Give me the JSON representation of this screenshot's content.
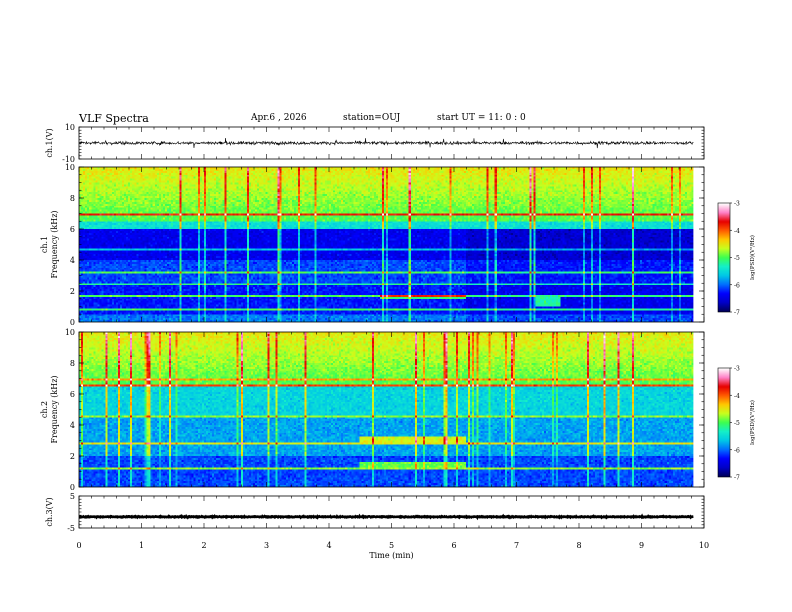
{
  "header": {
    "title": "VLF Spectra",
    "date": "Apr.6 , 2026",
    "station": "station=OUJ",
    "start_ut": "start UT = 11: 0 : 0"
  },
  "colors": {
    "spectrogram_colormap": [
      "#00007a",
      "#0000ff",
      "#0080ff",
      "#00e0e0",
      "#20ff60",
      "#e0ff20",
      "#ff8000",
      "#ff0000",
      "#ff80c0",
      "#ffffff"
    ],
    "waveform": "#000000"
  },
  "chart_data": [
    {
      "type": "line",
      "ylabel": "ch.1(V)",
      "ylim": [
        -10,
        10
      ],
      "ytick_labels": [
        "10",
        "-10"
      ],
      "xlim": [
        0,
        10
      ],
      "series": [
        {
          "values_note": "noise waveform centred on 0 V, roughly ±1 V with occasional spikes",
          "center": 0,
          "amplitude": 1
        }
      ]
    },
    {
      "type": "heatmap",
      "ylabel": "ch.1\nFrequency (kHz)",
      "ylim": [
        0,
        10
      ],
      "ytick_labels": [
        "0",
        "2",
        "4",
        "6",
        "8",
        "10"
      ],
      "xlim": [
        0,
        9.83
      ],
      "colorbar": {
        "label": "log(PSD)(V²/Hz)",
        "range": [
          -7,
          -3
        ],
        "tick_labels": [
          "-3",
          "-4",
          "-5",
          "-6",
          "-7"
        ]
      },
      "features": {
        "quiet_bands_khz": [
          [
            4.0,
            6.0
          ],
          [
            0.5,
            2.5
          ]
        ],
        "active_band_khz": [
          6.5,
          10
        ],
        "horizontal_lines_khz": [
          0.8,
          1.6,
          2.4,
          3.2,
          4.7,
          7.0
        ],
        "emission_bursts": [
          {
            "t_min": [
              4.8,
              6.2
            ],
            "f_khz": 1.6
          },
          {
            "t_min": [
              7.3,
              7.7
            ],
            "f_khz": [
              1.0,
              1.6
            ]
          }
        ]
      }
    },
    {
      "type": "heatmap",
      "ylabel": "ch.2\nFrequency (kHz)",
      "ylim": [
        0,
        10
      ],
      "ytick_labels": [
        "0",
        "2",
        "4",
        "6",
        "8",
        "10"
      ],
      "xlim": [
        0,
        9.83
      ],
      "colorbar": {
        "label": "log(PSD)(V²/Hz)",
        "range": [
          -7,
          -3
        ],
        "tick_labels": [
          "-3",
          "-4",
          "-5",
          "-6",
          "-7"
        ]
      },
      "features": {
        "active_band_khz": [
          6.5,
          10
        ],
        "horizontal_lines_khz": [
          1.2,
          2.8,
          4.5,
          6.6,
          7.0
        ],
        "emission_bursts": [
          {
            "t_min": [
              4.5,
              6.2
            ],
            "f_khz": [
              2.8,
              3.2
            ]
          },
          {
            "t_min": [
              4.5,
              6.2
            ],
            "f_khz": 1.4
          }
        ]
      }
    },
    {
      "type": "line",
      "ylabel": "ch.3(V)",
      "ylim": [
        -5,
        5
      ],
      "ytick_labels": [
        "5",
        "-5"
      ],
      "xlim": [
        0,
        10
      ],
      "series": [
        {
          "values_note": "flat trace at about -1.5 V",
          "center": -1.5,
          "amplitude": 0.15
        }
      ]
    }
  ],
  "x_axis": {
    "label": "Time (min)",
    "tick_labels": [
      "0",
      "1",
      "2",
      "3",
      "4",
      "5",
      "6",
      "7",
      "8",
      "9",
      "10"
    ]
  }
}
